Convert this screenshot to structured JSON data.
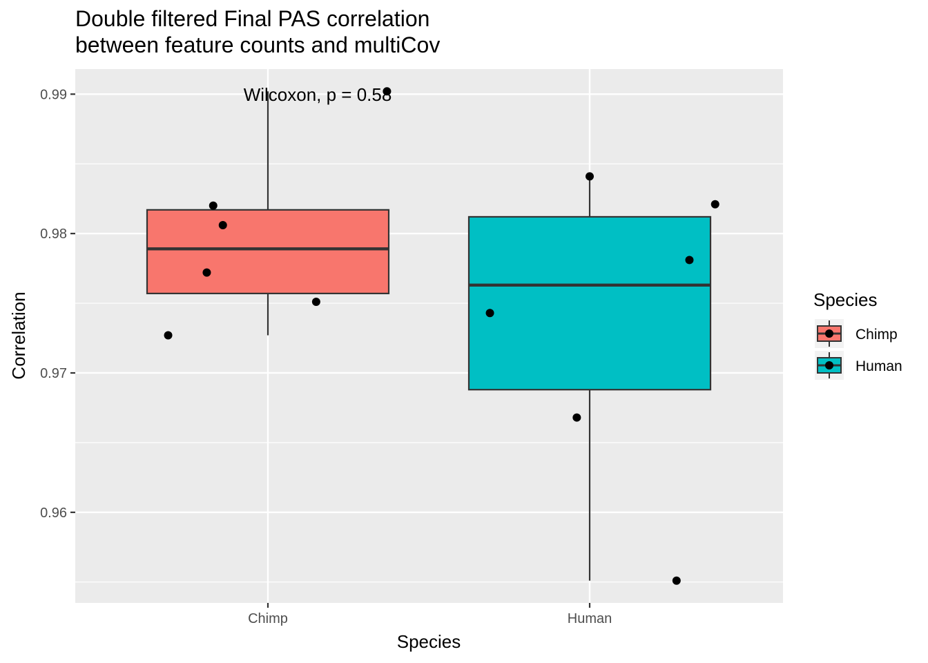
{
  "chart_data": {
    "type": "box",
    "title": "Double filtered Final PAS correlation\nbetween feature counts and multiCov",
    "xlabel": "Species",
    "ylabel": "Correlation",
    "ylim": [
      0.9535,
      0.9918
    ],
    "yticks": [
      0.96,
      0.97,
      0.98,
      0.99
    ],
    "ytick_labels": [
      "0.96",
      "0.97",
      "0.98",
      "0.99"
    ],
    "categories": [
      "Chimp",
      "Human"
    ],
    "grid": true,
    "annotation": "Wilcoxon, p = 0.58",
    "legend": {
      "title": "Species",
      "position": "right",
      "entries": [
        {
          "name": "Chimp",
          "color": "#F8766D"
        },
        {
          "name": "Human",
          "color": "#00BFC4"
        }
      ]
    },
    "boxes": [
      {
        "name": "Chimp",
        "color": "#F8766D",
        "whisker_low": 0.9727,
        "q1": 0.9757,
        "median": 0.9789,
        "q3": 0.9817,
        "whisker_high": 0.9902
      },
      {
        "name": "Human",
        "color": "#00BFC4",
        "whisker_low": 0.9551,
        "q1": 0.9688,
        "median": 0.9763,
        "q3": 0.9812,
        "whisker_high": 0.9841
      }
    ],
    "points": [
      {
        "group": "Chimp",
        "jitter": -0.31,
        "y": 0.9727
      },
      {
        "group": "Chimp",
        "jitter": -0.19,
        "y": 0.9772
      },
      {
        "group": "Chimp",
        "jitter": -0.17,
        "y": 0.982
      },
      {
        "group": "Chimp",
        "jitter": -0.14,
        "y": 0.9806
      },
      {
        "group": "Chimp",
        "jitter": 0.15,
        "y": 0.9751
      },
      {
        "group": "Chimp",
        "jitter": 0.37,
        "y": 0.9902
      },
      {
        "group": "Human",
        "jitter": -0.31,
        "y": 0.9743
      },
      {
        "group": "Human",
        "jitter": -0.04,
        "y": 0.9668
      },
      {
        "group": "Human",
        "jitter": 0.0,
        "y": 0.9841
      },
      {
        "group": "Human",
        "jitter": 0.31,
        "y": 0.9781
      },
      {
        "group": "Human",
        "jitter": 0.27,
        "y": 0.9551
      },
      {
        "group": "Human",
        "jitter": 0.39,
        "y": 0.9821
      }
    ]
  }
}
